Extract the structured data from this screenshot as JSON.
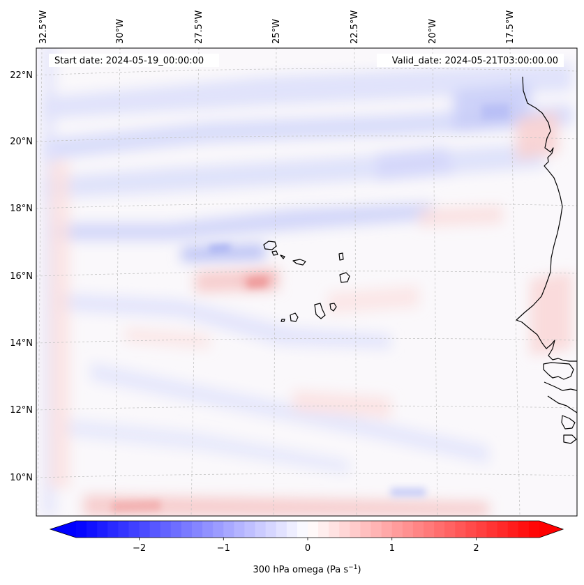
{
  "map": {
    "start_date_label": "Start date: 2024-05-19_00:00:00",
    "valid_date_label": "Valid_date: 2024-05-21T03:00:00.00",
    "lon_labels": [
      "32.5°W",
      "30°W",
      "27.5°W",
      "25°W",
      "22.5°W",
      "20°W",
      "17.5°W"
    ],
    "lat_labels": [
      "22°N",
      "20°N",
      "18°N",
      "16°N",
      "14°N",
      "12°N",
      "10°N"
    ],
    "field": "300 hPa omega",
    "colormap": "bwr",
    "coastline_color": "#000000",
    "gridline_style": "dashed grey"
  },
  "colorbar": {
    "label": "300 hPa omega (Pa s",
    "label_unit_superscript": "−1",
    "label_close": ")",
    "ticks": [
      "−2",
      "−1",
      "0",
      "1",
      "2"
    ],
    "tick_values": [
      -2,
      -1,
      0,
      1,
      2
    ],
    "min": -2.75,
    "max": 2.75,
    "extend": "both",
    "color_min": "#0000ff",
    "color_mid": "#ffffff",
    "color_max": "#ff0000"
  }
}
